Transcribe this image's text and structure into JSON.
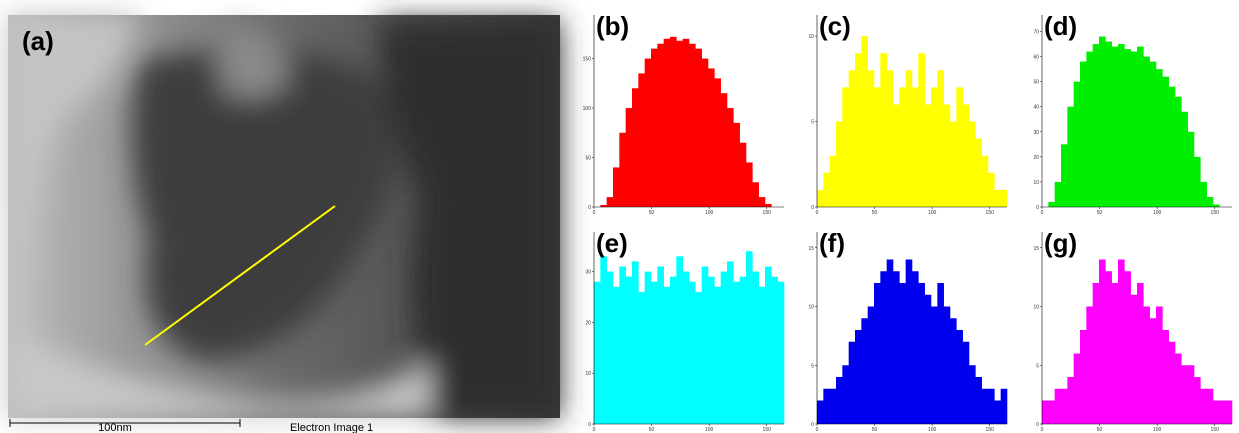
{
  "image_panel": {
    "label": "(a)",
    "scale_bar": "100nm",
    "caption": "Electron Image 1"
  },
  "chart_data": [
    {
      "type": "bar",
      "label": "(b)",
      "color": "#ff0000",
      "xlim": [
        0,
        165
      ],
      "xticks": [
        0,
        50,
        100,
        150
      ],
      "ylim": [
        0,
        190
      ],
      "yticks": [
        0,
        50,
        100,
        150
      ],
      "values": [
        0,
        2,
        10,
        40,
        75,
        100,
        120,
        135,
        150,
        160,
        165,
        170,
        172,
        168,
        170,
        165,
        160,
        150,
        140,
        130,
        115,
        100,
        85,
        65,
        45,
        25,
        10,
        3,
        0,
        0
      ]
    },
    {
      "type": "bar",
      "label": "(c)",
      "color": "#ffff00",
      "xlim": [
        0,
        165
      ],
      "xticks": [
        0,
        50,
        100,
        150
      ],
      "ylim": [
        0,
        11
      ],
      "yticks": [
        0,
        5,
        10
      ],
      "values": [
        1,
        2,
        3,
        5,
        7,
        8,
        9,
        10,
        8,
        7,
        9,
        8,
        6,
        7,
        8,
        7,
        9,
        6,
        7,
        8,
        6,
        5,
        7,
        6,
        5,
        4,
        3,
        2,
        1,
        1
      ]
    },
    {
      "type": "bar",
      "label": "(d)",
      "color": "#00ee00",
      "xlim": [
        0,
        165
      ],
      "xticks": [
        0,
        50,
        100,
        150
      ],
      "ylim": [
        0,
        75
      ],
      "yticks": [
        0,
        10,
        20,
        30,
        40,
        50,
        60,
        70
      ],
      "values": [
        0,
        2,
        10,
        25,
        40,
        50,
        58,
        62,
        65,
        68,
        66,
        64,
        65,
        63,
        62,
        64,
        60,
        58,
        55,
        52,
        48,
        44,
        38,
        30,
        20,
        10,
        4,
        1,
        0,
        0
      ]
    },
    {
      "type": "bar",
      "label": "(e)",
      "color": "#00ffff",
      "xlim": [
        0,
        165
      ],
      "xticks": [
        0,
        50,
        100,
        150
      ],
      "ylim": [
        0,
        37
      ],
      "yticks": [
        0,
        10,
        20,
        30
      ],
      "values": [
        28,
        33,
        30,
        27,
        31,
        29,
        32,
        26,
        30,
        28,
        31,
        27,
        29,
        33,
        30,
        28,
        26,
        31,
        29,
        27,
        30,
        32,
        28,
        29,
        34,
        30,
        27,
        31,
        29,
        28
      ]
    },
    {
      "type": "bar",
      "label": "(f)",
      "color": "#0000ee",
      "xlim": [
        0,
        165
      ],
      "xticks": [
        0,
        50,
        100,
        150
      ],
      "ylim": [
        0,
        16
      ],
      "yticks": [
        0,
        5,
        10,
        15
      ],
      "values": [
        2,
        3,
        3,
        4,
        5,
        7,
        8,
        9,
        10,
        12,
        13,
        14,
        13,
        12,
        14,
        13,
        12,
        11,
        10,
        12,
        10,
        9,
        8,
        7,
        5,
        4,
        3,
        3,
        2,
        3
      ]
    },
    {
      "type": "bar",
      "label": "(g)",
      "color": "#ff00ff",
      "xlim": [
        0,
        165
      ],
      "xticks": [
        0,
        50,
        100,
        150
      ],
      "ylim": [
        0,
        16
      ],
      "yticks": [
        0,
        5,
        10,
        15
      ],
      "values": [
        2,
        2,
        3,
        3,
        4,
        6,
        8,
        10,
        12,
        14,
        13,
        12,
        14,
        13,
        11,
        12,
        10,
        9,
        10,
        8,
        7,
        6,
        5,
        5,
        4,
        3,
        3,
        2,
        2,
        2
      ]
    }
  ]
}
